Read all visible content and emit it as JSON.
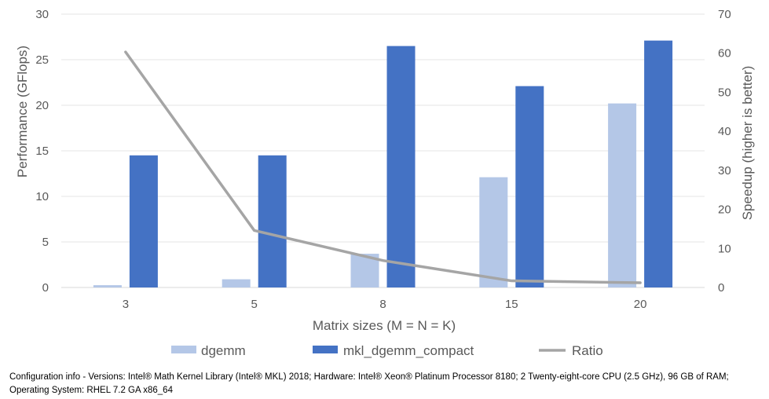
{
  "chart_data": {
    "type": "bar",
    "title": "",
    "categories": [
      "3",
      "5",
      "8",
      "15",
      "20"
    ],
    "xlabel": "Matrix sizes (M = N = K)",
    "ylabel": "Performance (GFlops)",
    "y2label": "Speedup (higher is better)",
    "ylim": [
      0,
      30
    ],
    "y2lim": [
      0,
      70
    ],
    "yticks": [
      "0",
      "5",
      "10",
      "15",
      "20",
      "25",
      "30"
    ],
    "y2ticks": [
      "0",
      "10",
      "20",
      "30",
      "40",
      "50",
      "60",
      "70"
    ],
    "grid": true,
    "legend_position": "bottom",
    "series": [
      {
        "name": "dgemm",
        "type": "bar",
        "axis": "left",
        "color": "#b4c7e7",
        "values": [
          0.25,
          0.9,
          3.7,
          12.1,
          20.2
        ]
      },
      {
        "name": "mkl_dgemm_compact",
        "type": "bar",
        "axis": "left",
        "color": "#4472c4",
        "values": [
          14.5,
          14.5,
          26.5,
          22.1,
          27.1
        ]
      },
      {
        "name": "Ratio",
        "type": "line",
        "axis": "right",
        "color": "#a5a5a5",
        "values": [
          60.3,
          14.6,
          6.9,
          1.7,
          1.2
        ]
      }
    ]
  },
  "footnote": {
    "line1": "Configuration info - Versions: Intel® Math Kernel Library (Intel® MKL) 2018; Hardware: Intel® Xeon® Platinum Processor 8180; 2 Twenty-eight-core CPU (2.5 GHz), 96 GB of RAM;",
    "line2": "Operating System: RHEL 7.2 GA x86_64"
  }
}
